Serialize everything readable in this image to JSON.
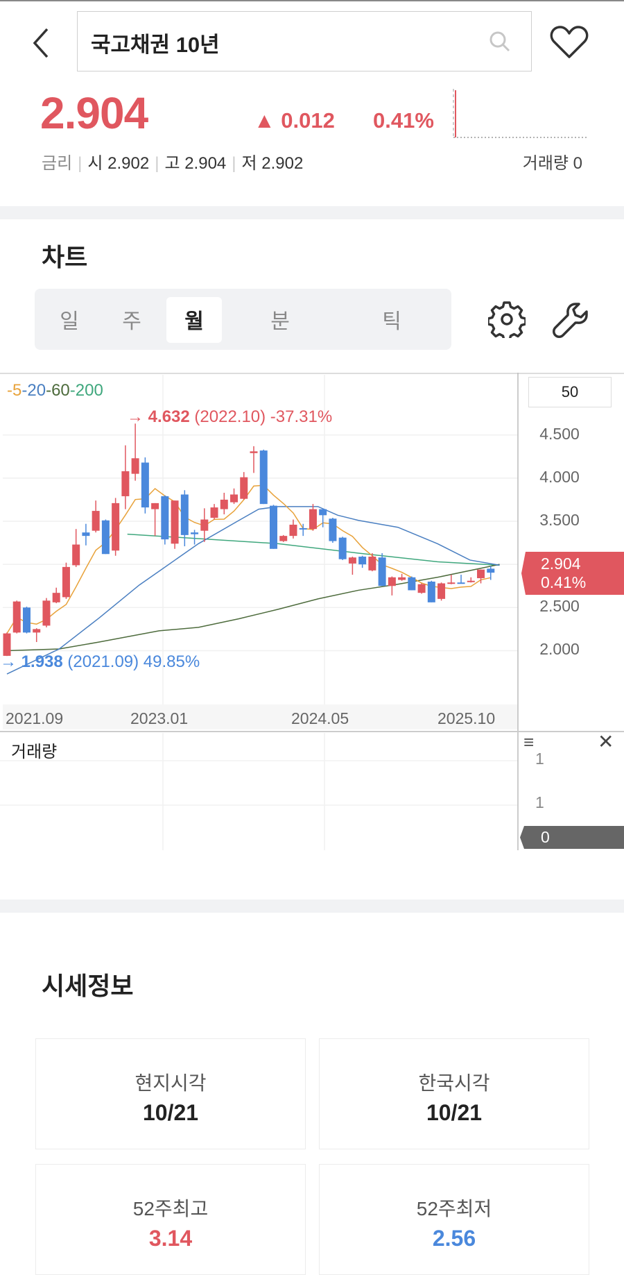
{
  "header": {
    "title": "국고채권 10년",
    "search_icon": "search-icon",
    "back_icon": "chevron-left-icon",
    "favorite_icon": "heart-icon"
  },
  "quote": {
    "price": "2.904",
    "change": "▲ 0.012",
    "change_pct": "0.41%",
    "rate_label": "금리",
    "open_label": "시 2.902",
    "high_label": "고 2.904",
    "low_label": "저 2.902",
    "volume_label": "거래량 0"
  },
  "chart_section": {
    "title": "차트",
    "tabs": [
      {
        "label": "일"
      },
      {
        "label": "주"
      },
      {
        "label": "월",
        "selected": true
      },
      {
        "label": "분"
      },
      {
        "label": "틱"
      }
    ],
    "settings_icon": "gear-icon",
    "tools_icon": "wrench-icon"
  },
  "chart_data": {
    "type": "candlestick",
    "period": "monthly",
    "visible_count": "50",
    "legend": [
      {
        "label": "5",
        "color": "#e8a23a"
      },
      {
        "label": "20",
        "color": "#4a7fc1"
      },
      {
        "label": "60",
        "color": "#4d6b3c"
      },
      {
        "label": "200",
        "color": "#3fa77d"
      }
    ],
    "y_ticks": [
      "4.500",
      "4.000",
      "3.500",
      "2.500",
      "2.000"
    ],
    "x_ticks": [
      "2021.09",
      "2023.01",
      "2024.05",
      "2025.10"
    ],
    "ylim": [
      1.8,
      4.8
    ],
    "max_annotation": {
      "value": "4.632",
      "rest": " (2022.10) -37.31%"
    },
    "min_annotation": {
      "value": "1.938",
      "rest": " (2021.09) 49.85%"
    },
    "current_tag": {
      "price": "2.904",
      "pct": "0.41%"
    },
    "up_color": "#e0575f",
    "down_color": "#4a88dc",
    "candles_ohlc": [
      [
        1.94,
        2.21,
        1.938,
        2.2
      ],
      [
        2.21,
        2.58,
        2.2,
        2.57
      ],
      [
        2.5,
        2.51,
        2.2,
        2.21
      ],
      [
        2.21,
        2.26,
        2.1,
        2.25
      ],
      [
        2.29,
        2.61,
        2.27,
        2.58
      ],
      [
        2.56,
        2.73,
        2.55,
        2.67
      ],
      [
        2.62,
        3.02,
        2.6,
        2.97
      ],
      [
        2.99,
        3.41,
        2.97,
        3.23
      ],
      [
        3.37,
        3.47,
        3.22,
        3.33
      ],
      [
        3.39,
        3.74,
        3.37,
        3.62
      ],
      [
        3.51,
        3.52,
        3.12,
        3.12
      ],
      [
        3.16,
        3.77,
        3.1,
        3.71
      ],
      [
        3.79,
        4.38,
        3.64,
        4.08
      ],
      [
        4.05,
        4.632,
        3.97,
        4.23
      ],
      [
        4.18,
        4.24,
        3.59,
        3.66
      ],
      [
        3.64,
        3.71,
        3.33,
        3.71
      ],
      [
        3.79,
        3.8,
        3.23,
        3.29
      ],
      [
        3.24,
        3.74,
        3.18,
        3.74
      ],
      [
        3.81,
        3.86,
        3.21,
        3.34
      ],
      [
        3.37,
        3.4,
        3.23,
        3.35
      ],
      [
        3.39,
        3.65,
        3.26,
        3.52
      ],
      [
        3.54,
        3.7,
        3.52,
        3.66
      ],
      [
        3.64,
        3.83,
        3.58,
        3.75
      ],
      [
        3.72,
        3.88,
        3.7,
        3.81
      ],
      [
        3.76,
        4.07,
        3.75,
        4.01
      ],
      [
        4.29,
        4.37,
        4.06,
        4.31
      ],
      [
        4.32,
        4.33,
        3.7,
        3.7
      ],
      [
        3.68,
        3.69,
        3.18,
        3.18
      ],
      [
        3.27,
        3.34,
        3.26,
        3.33
      ],
      [
        3.33,
        3.52,
        3.3,
        3.46
      ],
      [
        3.42,
        3.47,
        3.33,
        3.41
      ],
      [
        3.41,
        3.7,
        3.39,
        3.64
      ],
      [
        3.64,
        3.65,
        3.43,
        3.57
      ],
      [
        3.53,
        3.54,
        3.25,
        3.27
      ],
      [
        3.31,
        3.32,
        3.05,
        3.06
      ],
      [
        3.01,
        3.09,
        2.88,
        3.08
      ],
      [
        3.09,
        3.1,
        2.96,
        3.0
      ],
      [
        2.93,
        3.13,
        2.92,
        3.09
      ],
      [
        3.08,
        3.13,
        2.75,
        2.75
      ],
      [
        2.75,
        2.86,
        2.64,
        2.85
      ],
      [
        2.82,
        2.89,
        2.81,
        2.85
      ],
      [
        2.85,
        2.86,
        2.7,
        2.7
      ],
      [
        2.67,
        2.78,
        2.66,
        2.77
      ],
      [
        2.8,
        2.81,
        2.56,
        2.56
      ],
      [
        2.6,
        2.79,
        2.58,
        2.78
      ],
      [
        2.78,
        2.88,
        2.77,
        2.79
      ],
      [
        2.79,
        2.88,
        2.78,
        2.785
      ],
      [
        2.8,
        2.85,
        2.79,
        2.81
      ],
      [
        2.84,
        2.94,
        2.78,
        2.94
      ],
      [
        2.95,
        2.98,
        2.82,
        2.904
      ]
    ],
    "ma20_points": [
      [
        0,
        1.73
      ],
      [
        5.3,
        2.02
      ],
      [
        9.35,
        2.38
      ],
      [
        13.4,
        2.76
      ],
      [
        15.4,
        2.92
      ],
      [
        19.4,
        3.24
      ],
      [
        23.5,
        3.51
      ],
      [
        25.5,
        3.64
      ],
      [
        27.5,
        3.67
      ],
      [
        31.5,
        3.67
      ],
      [
        33.5,
        3.57
      ],
      [
        35.6,
        3.51
      ],
      [
        39.6,
        3.43
      ],
      [
        43.6,
        3.24
      ],
      [
        46.9,
        3.05
      ],
      [
        49.9,
        2.99
      ]
    ],
    "ma60_points": [
      [
        0,
        2.0
      ],
      [
        5.3,
        2.02
      ],
      [
        9.35,
        2.1
      ],
      [
        15.4,
        2.23
      ],
      [
        19.4,
        2.27
      ],
      [
        23.5,
        2.37
      ],
      [
        27.5,
        2.48
      ],
      [
        31.5,
        2.6
      ],
      [
        35.6,
        2.7
      ],
      [
        39.6,
        2.77
      ],
      [
        43.6,
        2.85
      ],
      [
        49.9,
        3.0
      ]
    ],
    "ma200_points": [
      [
        12.2,
        3.35
      ],
      [
        27.5,
        3.24
      ],
      [
        35.6,
        3.13
      ],
      [
        43.6,
        3.03
      ],
      [
        49.9,
        2.99
      ]
    ]
  },
  "volume_panel": {
    "title": "거래량",
    "y_ticks": [
      "1",
      "1"
    ],
    "current": "0",
    "menu_icon": "menu-icon",
    "close_icon": "close-icon"
  },
  "market_info": {
    "title": "시세정보",
    "cards": [
      {
        "label": "현지시각",
        "value": "10/21",
        "color": "#222222"
      },
      {
        "label": "한국시각",
        "value": "10/21",
        "color": "#222222"
      },
      {
        "label": "52주최고",
        "value": "3.14",
        "color": "#e0575f"
      },
      {
        "label": "52주최저",
        "value": "2.56",
        "color": "#4a88dc"
      }
    ]
  }
}
